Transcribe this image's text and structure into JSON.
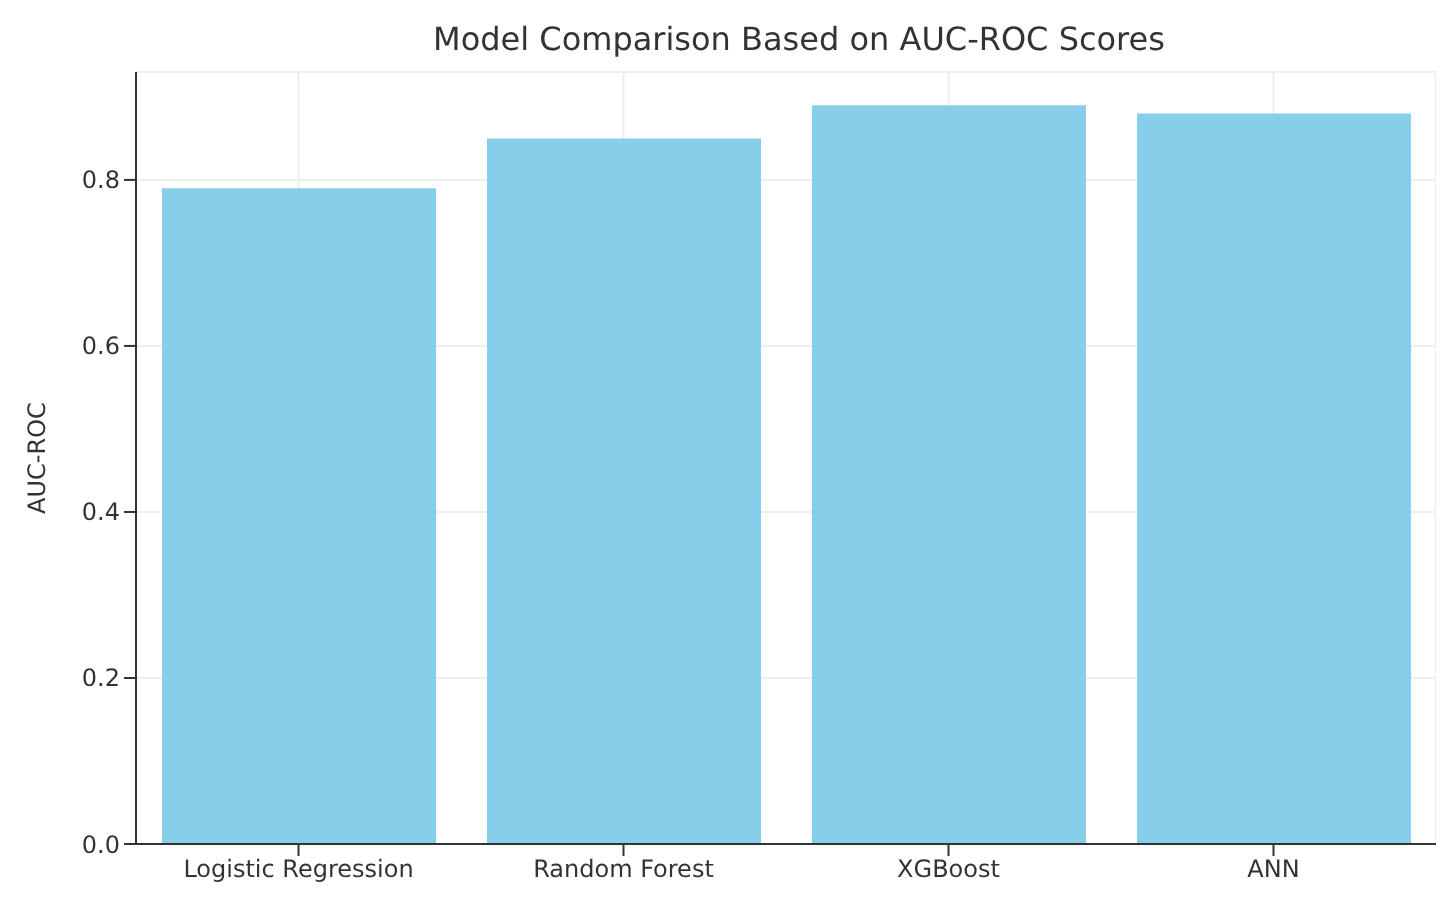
{
  "chart_data": {
    "type": "bar",
    "title": "Model Comparison Based on AUC-ROC Scores",
    "ylabel": "AUC-ROC",
    "categories": [
      "Logistic Regression",
      "Random Forest",
      "XGBoost",
      "ANN"
    ],
    "values": [
      0.79,
      0.85,
      0.89,
      0.88
    ],
    "color": "#87ceeb",
    "ylim": [
      0,
      0.93
    ],
    "yticks": [
      {
        "value": 0,
        "label": "0.0"
      },
      0.2,
      0.4,
      0.6,
      0.8
    ],
    "grid": true
  }
}
